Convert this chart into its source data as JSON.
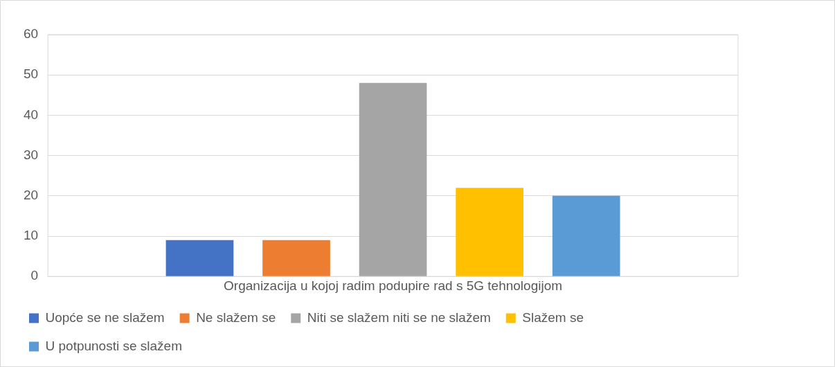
{
  "chart_data": {
    "type": "bar",
    "categories": [
      "Organizacija u kojoj radim podupire rad s 5G tehnologijom"
    ],
    "series": [
      {
        "name": "Uopće se ne slažem",
        "color": "#4472c4",
        "values": [
          9
        ]
      },
      {
        "name": "Ne slažem se",
        "color": "#ed7d31",
        "values": [
          9
        ]
      },
      {
        "name": "Niti se slažem niti se ne slažem",
        "color": "#a5a5a5",
        "values": [
          48
        ]
      },
      {
        "name": "Slažem se",
        "color": "#ffc000",
        "values": [
          22
        ]
      },
      {
        "name": "U potpunosti se slažem",
        "color": "#5b9bd5",
        "values": [
          20
        ]
      }
    ],
    "ylim": [
      0,
      60
    ],
    "yticks": [
      0,
      10,
      20,
      30,
      40,
      50,
      60
    ],
    "grid": "y",
    "legend": "bottom"
  }
}
